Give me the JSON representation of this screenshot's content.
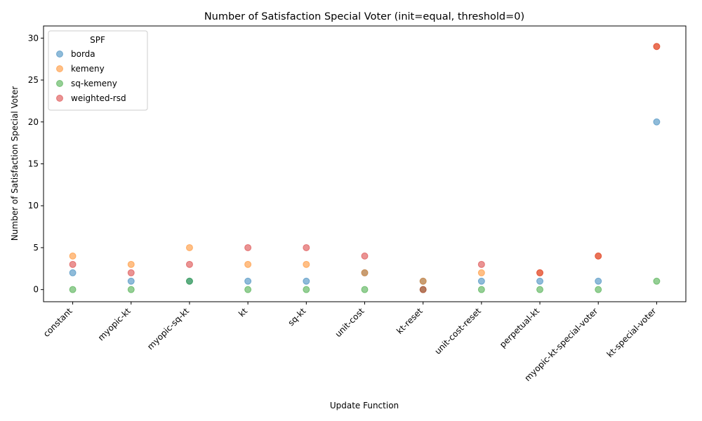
{
  "chart_data": {
    "type": "scatter",
    "title": "Number of Satisfaction Special Voter (init=equal, threshold=0)",
    "xlabel": "Update Function",
    "ylabel": "Number of Satisfaction Special Voter",
    "categories": [
      "constant",
      "myopic-kt",
      "myopic-sq-kt",
      "kt",
      "sq-kt",
      "unit-cost",
      "kt-reset",
      "unit-cost-reset",
      "perpetual-kt",
      "myopic-kt-special-voter",
      "kt-special-voter"
    ],
    "ylim": [
      -1.45,
      31.45
    ],
    "yticks": [
      0,
      5,
      10,
      15,
      20,
      25,
      30
    ],
    "grid": false,
    "legend": {
      "title": "SPF",
      "placement": "top-left"
    },
    "series": [
      {
        "name": "borda",
        "color": "#1f77b4",
        "values": [
          2,
          1,
          1,
          1,
          1,
          2,
          1,
          1,
          1,
          1,
          20
        ]
      },
      {
        "name": "kemeny",
        "color": "#ff7f0e",
        "values": [
          4,
          3,
          5,
          3,
          3,
          2,
          1,
          2,
          2,
          4,
          29
        ]
      },
      {
        "name": "sq-kemeny",
        "color": "#2ca02c",
        "values": [
          0,
          0,
          1,
          0,
          0,
          0,
          0,
          0,
          0,
          0,
          1
        ]
      },
      {
        "name": "weighted-rsd",
        "color": "#d62728",
        "values": [
          3,
          2,
          3,
          5,
          5,
          4,
          0,
          3,
          2,
          4,
          29
        ]
      }
    ]
  }
}
